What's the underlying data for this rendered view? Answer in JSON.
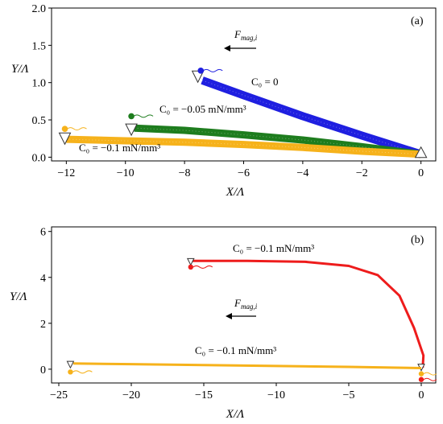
{
  "chart_data": [
    {
      "type": "line",
      "panel_label": "(a)",
      "xlabel": "X/Λ",
      "ylabel": "Y/Λ",
      "xlim": [
        -12.5,
        0.5
      ],
      "ylim": [
        -0.05,
        2.0
      ],
      "xticks": [
        -12,
        -10,
        -8,
        -6,
        -4,
        -2,
        0
      ],
      "xtick_labels": [
        "−12",
        "−10",
        "−8",
        "−6",
        "−4",
        "−2",
        "0"
      ],
      "yticks": [
        0.0,
        0.5,
        1.0,
        1.5,
        2.0
      ],
      "ytick_labels": [
        "0.0",
        "0.5",
        "1.0",
        "1.5",
        "2.0"
      ],
      "force_label": "F",
      "force_sub": "mag,i",
      "colors": {
        "blue": "#1f1fe0",
        "green": "#1e7d1e",
        "orange": "#f6b21b"
      },
      "series": [
        {
          "color": "blue",
          "annotation": "C₀ = 0",
          "points": [
            [
              -7.4,
              1.03
            ],
            [
              -6,
              0.83
            ],
            [
              -4,
              0.55
            ],
            [
              -2,
              0.29
            ],
            [
              0,
              0.04
            ]
          ],
          "start_marker": [
            -7.55,
            1.08
          ],
          "start_dot": [
            -7.45,
            1.16
          ]
        },
        {
          "color": "green",
          "annotation": "C₀ = −0.05 mN/mm³",
          "points": [
            [
              -9.7,
              0.39
            ],
            [
              -8,
              0.36
            ],
            [
              -6,
              0.3
            ],
            [
              -4,
              0.23
            ],
            [
              -2,
              0.14
            ],
            [
              0,
              0.04
            ]
          ],
          "start_marker": [
            -9.8,
            0.37
          ],
          "start_dot": [
            -9.8,
            0.55
          ]
        },
        {
          "color": "orange",
          "annotation": "C₀ = −0.1 mN/mm³",
          "points": [
            [
              -12,
              0.24
            ],
            [
              -10,
              0.22
            ],
            [
              -8,
              0.2
            ],
            [
              -6,
              0.17
            ],
            [
              -4,
              0.13
            ],
            [
              -2,
              0.08
            ],
            [
              0,
              0.04
            ]
          ],
          "start_marker": [
            -12.05,
            0.25
          ],
          "start_dot": [
            -12.05,
            0.38
          ]
        }
      ],
      "end_marker": [
        0,
        0.06
      ]
    },
    {
      "type": "line",
      "panel_label": "(b)",
      "xlabel": "X/Λ",
      "ylabel": "Y/Λ",
      "xlim": [
        -25.5,
        1.0
      ],
      "ylim": [
        -0.6,
        6.2
      ],
      "xticks": [
        -25,
        -20,
        -15,
        -10,
        -5,
        0
      ],
      "xtick_labels": [
        "−25",
        "−20",
        "−15",
        "−10",
        "−5",
        "0"
      ],
      "yticks": [
        0,
        2,
        4,
        6
      ],
      "ytick_labels": [
        "0",
        "2",
        "4",
        "6"
      ],
      "force_label": "F",
      "force_sub": "mag,i",
      "colors": {
        "red": "#ee1c1c",
        "orange": "#f6b21b"
      },
      "series": [
        {
          "color": "red",
          "annotation": "C₀ = −0.1 mN/mm³",
          "points": [
            [
              -15.8,
              4.72
            ],
            [
              -12,
              4.72
            ],
            [
              -8,
              4.68
            ],
            [
              -5,
              4.5
            ],
            [
              -3,
              4.1
            ],
            [
              -1.5,
              3.2
            ],
            [
              -0.5,
              1.8
            ],
            [
              0.15,
              0.6
            ],
            [
              0.1,
              0.06
            ]
          ],
          "start_marker": [
            -15.9,
            4.68
          ],
          "start_dot": [
            -15.9,
            4.45
          ],
          "end_marker": [
            0,
            0.08
          ],
          "end_dot": [
            0,
            -0.45
          ]
        },
        {
          "color": "orange",
          "annotation": "C₀ = −0.1 mN/mm³",
          "points": [
            [
              -24,
              0.25
            ],
            [
              -20,
              0.22
            ],
            [
              -15,
              0.18
            ],
            [
              -10,
              0.14
            ],
            [
              -5,
              0.1
            ],
            [
              0,
              0.05
            ]
          ],
          "start_marker": [
            -24.2,
            0.2
          ],
          "start_dot": [
            -24.2,
            -0.12
          ],
          "end_dot": [
            0,
            -0.2
          ]
        }
      ]
    }
  ]
}
